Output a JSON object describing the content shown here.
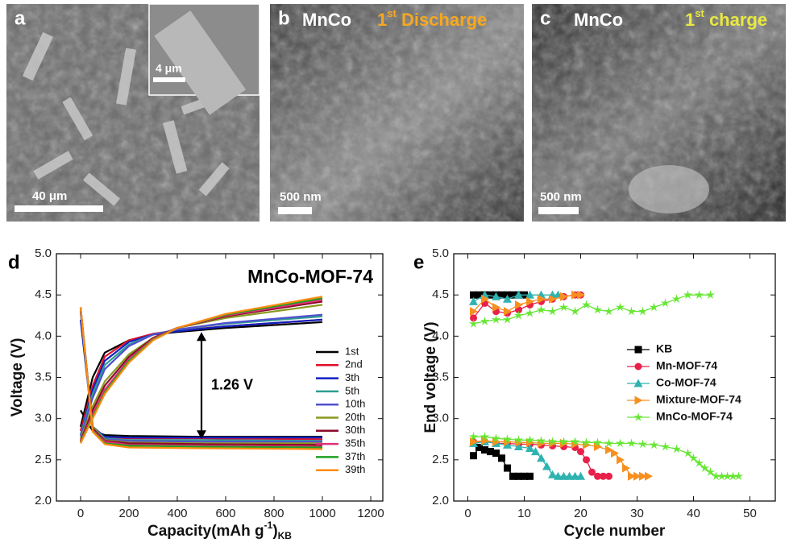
{
  "images": [
    {
      "label": "a",
      "inset_scale": "4 μm",
      "scale": "40 μm"
    },
    {
      "label": "b",
      "sample": "MnCo",
      "cycle": "1",
      "cycle_sup": "st",
      "stage": "Discharge",
      "scale": "500 nm"
    },
    {
      "label": "c",
      "sample": "MnCo",
      "cycle": "1",
      "cycle_sup": "st",
      "stage": "charge",
      "scale": "500 nm"
    }
  ],
  "chart_data": [
    {
      "type": "line",
      "panel": "d",
      "title": "MnCo-MOF-74",
      "ylabel": "Voltage (V)",
      "xlabel": {
        "text": "Capacity(mAh g",
        "sup": "-1",
        "end": ")",
        "sub": "KB"
      },
      "xlim": [
        -100,
        1250
      ],
      "xticks": [
        0,
        200,
        400,
        600,
        800,
        1000,
        1200
      ],
      "ylim": [
        2,
        5
      ],
      "yticks": [
        {
          "value": 2,
          "label": "2.0"
        },
        {
          "value": 2.5,
          "label": "2.5"
        },
        {
          "value": 3,
          "label": "3.0"
        },
        {
          "value": 3.5,
          "label": "3.5"
        },
        {
          "value": 4,
          "label": "4.0"
        },
        {
          "value": 4.5,
          "label": "4.5"
        },
        {
          "value": 5,
          "label": "5.0"
        }
      ],
      "annotation": {
        "text": "1.26 V",
        "x": 500,
        "y_from": 4.05,
        "y_to": 2.75
      },
      "legend": "right",
      "x": [
        0,
        50,
        100,
        200,
        500,
        1000,
        null,
        0,
        50,
        100,
        200,
        300,
        400,
        600,
        1000
      ],
      "series": [
        {
          "name": "1st",
          "color": "#000000",
          "values": [
            3.1,
            2.85,
            2.8,
            2.79,
            2.78,
            2.78,
            null,
            2.9,
            3.5,
            3.8,
            3.95,
            4.02,
            4.05,
            4.1,
            4.17
          ]
        },
        {
          "name": "2nd",
          "color": "#e0102a",
          "values": [
            4.3,
            2.9,
            2.77,
            2.76,
            2.76,
            2.75,
            null,
            2.85,
            3.4,
            3.75,
            3.95,
            4.03,
            4.07,
            4.12,
            4.2
          ]
        },
        {
          "name": "3th",
          "color": "#1020c0",
          "values": [
            4.2,
            2.9,
            2.78,
            2.77,
            2.77,
            2.77,
            null,
            2.8,
            3.35,
            3.7,
            3.93,
            4.02,
            4.06,
            4.12,
            4.2
          ]
        },
        {
          "name": "5th",
          "color": "#2e9e8e",
          "values": [
            4.3,
            2.9,
            2.76,
            2.74,
            2.74,
            2.73,
            null,
            2.8,
            3.3,
            3.65,
            3.9,
            4.02,
            4.08,
            4.15,
            4.24
          ]
        },
        {
          "name": "10th",
          "color": "#5050d0",
          "values": [
            4.3,
            2.88,
            2.75,
            2.73,
            2.72,
            2.72,
            null,
            2.78,
            3.25,
            3.6,
            3.88,
            4.02,
            4.08,
            4.16,
            4.26
          ]
        },
        {
          "name": "20th",
          "color": "#8a9a20",
          "values": [
            4.35,
            2.9,
            2.74,
            2.71,
            2.7,
            2.7,
            null,
            2.75,
            3.15,
            3.45,
            3.78,
            3.98,
            4.1,
            4.22,
            4.38
          ]
        },
        {
          "name": "30th",
          "color": "#8b0a2a",
          "values": [
            4.35,
            2.88,
            2.73,
            2.7,
            2.69,
            2.68,
            null,
            2.73,
            3.1,
            3.4,
            3.75,
            3.98,
            4.1,
            4.24,
            4.42
          ]
        },
        {
          "name": "35th",
          "color": "#e0307a",
          "values": [
            4.35,
            2.86,
            2.72,
            2.68,
            2.67,
            2.66,
            null,
            2.72,
            3.05,
            3.35,
            3.72,
            3.97,
            4.1,
            4.25,
            4.44
          ]
        },
        {
          "name": "37th",
          "color": "#20a020",
          "values": [
            4.35,
            2.85,
            2.7,
            2.67,
            2.66,
            2.65,
            null,
            2.71,
            3.02,
            3.32,
            3.7,
            3.96,
            4.1,
            4.26,
            4.46
          ]
        },
        {
          "name": "39th",
          "color": "#ff8a10",
          "values": [
            4.35,
            2.84,
            2.69,
            2.65,
            2.64,
            2.63,
            null,
            2.7,
            3.0,
            3.3,
            3.68,
            3.95,
            4.1,
            4.27,
            4.48
          ]
        }
      ]
    },
    {
      "type": "scatter-line",
      "panel": "e",
      "ylabel": "End voltage (V)",
      "xlabel": {
        "text": "Cycle number"
      },
      "xlim": [
        -2.5,
        54.5
      ],
      "xticks": [
        0,
        10,
        20,
        30,
        40,
        50
      ],
      "ylim": [
        2,
        5
      ],
      "yticks": [
        {
          "value": 2,
          "label": "2.0"
        },
        {
          "value": 2.5,
          "label": "2.5"
        },
        {
          "value": 3,
          "label": "3.0"
        },
        {
          "value": 3.5,
          "label": "3.5"
        },
        {
          "value": 4,
          "label": "4.0"
        },
        {
          "value": 4.5,
          "label": "4.5"
        },
        {
          "value": 5,
          "label": "5.0"
        }
      ],
      "legend": "center-right",
      "series": [
        {
          "name": "KB",
          "color": "#000000",
          "marker": "square",
          "x": [
            1,
            2,
            3,
            4,
            5,
            6,
            7,
            8,
            9,
            10,
            null,
            1,
            2,
            3,
            4,
            5,
            6,
            7,
            8,
            9,
            10,
            11
          ],
          "values": [
            4.5,
            4.5,
            4.5,
            4.5,
            4.5,
            4.5,
            4.5,
            4.5,
            4.5,
            4.5,
            null,
            2.55,
            2.65,
            2.62,
            2.6,
            2.58,
            2.52,
            2.4,
            2.3,
            2.3,
            2.3,
            2.3
          ]
        },
        {
          "name": "Mn-MOF-74",
          "color": "#e8204a",
          "marker": "circle",
          "x": [
            1,
            3,
            5,
            7,
            9,
            11,
            13,
            15,
            17,
            19,
            20,
            null,
            1,
            3,
            5,
            7,
            9,
            11,
            13,
            15,
            17,
            19,
            20,
            21,
            22,
            23,
            24,
            25
          ],
          "values": [
            4.22,
            4.4,
            4.3,
            4.28,
            4.32,
            4.38,
            4.42,
            4.45,
            4.48,
            4.5,
            4.5,
            null,
            2.72,
            2.72,
            2.7,
            2.7,
            2.69,
            2.69,
            2.68,
            2.67,
            2.66,
            2.65,
            2.6,
            2.5,
            2.35,
            2.3,
            2.3,
            2.3
          ]
        },
        {
          "name": "Co-MOF-74",
          "color": "#2fb3b0",
          "marker": "triangle",
          "x": [
            1,
            3,
            5,
            7,
            9,
            11,
            13,
            15,
            16,
            null,
            1,
            3,
            5,
            7,
            9,
            11,
            12,
            13,
            14,
            15,
            16,
            17,
            18,
            19,
            20
          ],
          "values": [
            4.42,
            4.5,
            4.48,
            4.45,
            4.5,
            4.5,
            4.5,
            4.5,
            4.5,
            null,
            2.7,
            2.72,
            2.7,
            2.68,
            2.66,
            2.64,
            2.6,
            2.52,
            2.42,
            2.32,
            2.3,
            2.3,
            2.3,
            2.3,
            2.3
          ]
        },
        {
          "name": "Mixture-MOF-74",
          "color": "#f7901e",
          "marker": "triangle-right",
          "x": [
            1,
            3,
            5,
            7,
            9,
            11,
            13,
            15,
            17,
            19,
            20,
            null,
            1,
            3,
            5,
            7,
            9,
            11,
            13,
            15,
            17,
            19,
            21,
            23,
            25,
            26,
            27,
            28,
            29,
            30,
            31,
            32
          ],
          "values": [
            4.3,
            4.45,
            4.35,
            4.3,
            4.38,
            4.42,
            4.45,
            4.45,
            4.48,
            4.5,
            4.5,
            null,
            2.72,
            2.73,
            2.72,
            2.72,
            2.71,
            2.71,
            2.7,
            2.7,
            2.7,
            2.69,
            2.68,
            2.66,
            2.62,
            2.58,
            2.5,
            2.4,
            2.3,
            2.3,
            2.3,
            2.3
          ]
        },
        {
          "name": "MnCo-MOF-74",
          "color": "#66e633",
          "marker": "star",
          "x": [
            1,
            3,
            5,
            7,
            9,
            11,
            13,
            15,
            17,
            19,
            21,
            23,
            25,
            27,
            29,
            31,
            33,
            35,
            37,
            39,
            41,
            43,
            null,
            1,
            3,
            5,
            7,
            9,
            11,
            13,
            15,
            17,
            19,
            21,
            23,
            25,
            27,
            29,
            31,
            33,
            35,
            37,
            39,
            40,
            41,
            42,
            43,
            44,
            45,
            46,
            47,
            48
          ],
          "values": [
            4.15,
            4.18,
            4.2,
            4.2,
            4.25,
            4.28,
            4.32,
            4.3,
            4.35,
            4.3,
            4.38,
            4.32,
            4.3,
            4.35,
            4.3,
            4.3,
            4.35,
            4.4,
            4.45,
            4.5,
            4.5,
            4.5,
            null,
            2.78,
            2.78,
            2.76,
            2.75,
            2.74,
            2.74,
            2.73,
            2.72,
            2.72,
            2.72,
            2.71,
            2.71,
            2.7,
            2.7,
            2.7,
            2.69,
            2.68,
            2.66,
            2.63,
            2.58,
            2.52,
            2.46,
            2.4,
            2.35,
            2.3,
            2.3,
            2.3,
            2.3,
            2.3
          ]
        }
      ]
    }
  ]
}
